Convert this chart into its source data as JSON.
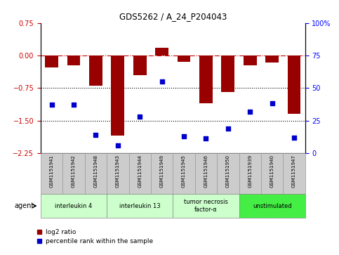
{
  "title": "GDS5262 / A_24_P204043",
  "samples": [
    "GSM1151941",
    "GSM1151942",
    "GSM1151948",
    "GSM1151943",
    "GSM1151944",
    "GSM1151949",
    "GSM1151945",
    "GSM1151946",
    "GSM1151950",
    "GSM1151939",
    "GSM1151940",
    "GSM1151947"
  ],
  "log2_ratio": [
    -0.28,
    -0.22,
    -0.7,
    -1.85,
    -0.45,
    0.18,
    -0.15,
    -1.1,
    -0.85,
    -0.22,
    -0.17,
    -1.35
  ],
  "percentile_rank": [
    37,
    37,
    14,
    6,
    28,
    55,
    13,
    11,
    19,
    32,
    38,
    12
  ],
  "bar_color": "#990000",
  "dot_color": "#0000cc",
  "ylim_left": [
    -2.25,
    0.75
  ],
  "ylim_right": [
    0,
    100
  ],
  "yticks_left": [
    0.75,
    0,
    -0.75,
    -1.5,
    -2.25
  ],
  "yticks_right": [
    100,
    75,
    50,
    25,
    0
  ],
  "hlines": [
    0,
    -0.75,
    -1.5
  ],
  "hline_styles": [
    "dashdot",
    "dotted",
    "dotted"
  ],
  "hline_colors": [
    "#cc0000",
    "black",
    "black"
  ],
  "groups": [
    {
      "label": "interleukin 4",
      "start": 0,
      "end": 3,
      "color": "#ccffcc"
    },
    {
      "label": "interleukin 13",
      "start": 3,
      "end": 6,
      "color": "#ccffcc"
    },
    {
      "label": "tumor necrosis\nfactor-α",
      "start": 6,
      "end": 9,
      "color": "#ccffcc"
    },
    {
      "label": "unstimulated",
      "start": 9,
      "end": 12,
      "color": "#44ee44"
    }
  ],
  "agent_label": "agent",
  "legend_items": [
    {
      "color": "#990000",
      "label": "log2 ratio"
    },
    {
      "color": "#0000cc",
      "label": "percentile rank within the sample"
    }
  ],
  "bar_width": 0.6,
  "sample_box_color": "#cccccc",
  "sample_box_edge": "#999999"
}
